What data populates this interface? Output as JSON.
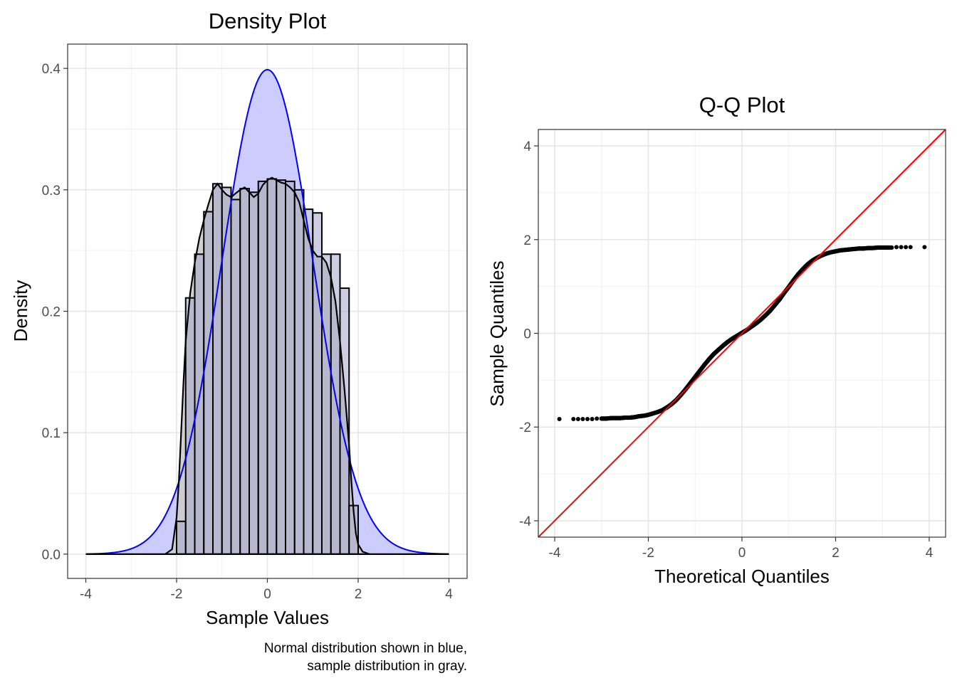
{
  "colors": {
    "normal_line": "#0000ff",
    "normal_fill": "#ccccff",
    "sample_fill": "#cccccc",
    "hist_bar_fill": "#a6a6cc",
    "outline": "#000000",
    "reference_line": "#ff0000",
    "points": "#000000"
  },
  "caption": {
    "line1": "Normal distribution shown in blue,",
    "line2": "sample distribution in gray."
  },
  "chart_data": [
    {
      "type": "area",
      "title": "Density Plot",
      "xlabel": "Sample Values",
      "ylabel": "Density",
      "xlim": [
        -4.4,
        4.4
      ],
      "ylim": [
        -0.02,
        0.42
      ],
      "x_ticks": [
        -4,
        -2,
        0,
        2,
        4
      ],
      "x_tick_labels": [
        "-4",
        "-2",
        "0",
        "2",
        "4"
      ],
      "y_ticks": [
        0.0,
        0.1,
        0.2,
        0.3,
        0.4
      ],
      "y_tick_labels": [
        "0.0",
        "0.1",
        "0.2",
        "0.3",
        "0.4"
      ],
      "grid": true,
      "series": [
        {
          "kind": "histogram",
          "bin_width": 0.2,
          "bin_starts": [
            -2.0,
            -1.8,
            -1.6,
            -1.4,
            -1.2,
            -1.0,
            -0.8,
            -0.6,
            -0.4,
            -0.2,
            0.0,
            0.2,
            0.4,
            0.6,
            0.8,
            1.0,
            1.2,
            1.4,
            1.6,
            1.8
          ],
          "values": [
            0.027,
            0.211,
            0.247,
            0.282,
            0.305,
            0.302,
            0.292,
            0.301,
            0.298,
            0.307,
            0.309,
            0.308,
            0.307,
            0.3,
            0.284,
            0.281,
            0.247,
            0.247,
            0.219,
            0.04
          ]
        },
        {
          "kind": "sample_density",
          "x": [
            -2.25,
            -2.1,
            -2.0,
            -1.95,
            -1.9,
            -1.85,
            -1.8,
            -1.7,
            -1.6,
            -1.5,
            -1.4,
            -1.3,
            -1.2,
            -1.1,
            -1.0,
            -0.9,
            -0.8,
            -0.7,
            -0.6,
            -0.5,
            -0.4,
            -0.3,
            -0.2,
            -0.1,
            0.0,
            0.1,
            0.2,
            0.3,
            0.4,
            0.5,
            0.6,
            0.7,
            0.8,
            0.9,
            1.0,
            1.1,
            1.2,
            1.3,
            1.4,
            1.5,
            1.6,
            1.7,
            1.8,
            1.85,
            1.9,
            1.95,
            2.0,
            2.1,
            2.25
          ],
          "values": [
            0.0,
            0.004,
            0.03,
            0.06,
            0.1,
            0.14,
            0.175,
            0.215,
            0.24,
            0.26,
            0.275,
            0.288,
            0.3,
            0.305,
            0.3,
            0.296,
            0.294,
            0.297,
            0.3,
            0.302,
            0.298,
            0.294,
            0.297,
            0.304,
            0.308,
            0.31,
            0.308,
            0.306,
            0.305,
            0.302,
            0.298,
            0.29,
            0.275,
            0.26,
            0.25,
            0.245,
            0.245,
            0.24,
            0.228,
            0.208,
            0.175,
            0.135,
            0.09,
            0.06,
            0.035,
            0.017,
            0.008,
            0.002,
            0.0
          ]
        },
        {
          "kind": "normal_density",
          "mean": 0,
          "sd": 1,
          "x_range": [
            -4,
            4
          ]
        }
      ]
    },
    {
      "type": "scatter",
      "title": "Q-Q Plot",
      "xlabel": "Theoretical Quantiles",
      "ylabel": "Sample Quantiles",
      "xlim": [
        -4.35,
        4.35
      ],
      "ylim": [
        -4.35,
        4.35
      ],
      "x_ticks": [
        -4,
        -2,
        0,
        2,
        4
      ],
      "x_tick_labels": [
        "-4",
        "-2",
        "0",
        "2",
        "4"
      ],
      "y_ticks": [
        -4,
        -2,
        0,
        2,
        4
      ],
      "y_tick_labels": [
        "-4",
        "-2",
        "0",
        "2",
        "4"
      ],
      "grid": true,
      "reference_line": {
        "intercept": 0,
        "slope": 1
      },
      "series": [
        {
          "kind": "qq_points",
          "x": [
            -3.9,
            -3.6,
            -3.5,
            -3.4,
            -3.3,
            -3.2,
            -3.1,
            -3.0,
            -2.9,
            -2.8,
            -2.7,
            -2.6,
            -2.5,
            -2.4,
            -2.3,
            -2.2,
            -2.1,
            -2.0,
            -1.9,
            -1.8,
            -1.7,
            -1.6,
            -1.5,
            -1.4,
            -1.3,
            -1.2,
            -1.1,
            -1.0,
            -0.9,
            -0.8,
            -0.7,
            -0.6,
            -0.5,
            -0.4,
            -0.3,
            -0.2,
            -0.1,
            0.0,
            0.1,
            0.2,
            0.3,
            0.4,
            0.5,
            0.6,
            0.7,
            0.8,
            0.9,
            1.0,
            1.1,
            1.2,
            1.3,
            1.4,
            1.5,
            1.6,
            1.7,
            1.8,
            1.9,
            2.0,
            2.1,
            2.2,
            2.3,
            2.4,
            2.5,
            2.6,
            2.7,
            2.8,
            2.9,
            3.0,
            3.1,
            3.2,
            3.3,
            3.4,
            3.5,
            3.6,
            3.9
          ],
          "y": [
            -1.83,
            -1.83,
            -1.83,
            -1.83,
            -1.83,
            -1.83,
            -1.82,
            -1.82,
            -1.82,
            -1.81,
            -1.81,
            -1.81,
            -1.8,
            -1.8,
            -1.79,
            -1.77,
            -1.76,
            -1.74,
            -1.71,
            -1.68,
            -1.64,
            -1.58,
            -1.51,
            -1.42,
            -1.31,
            -1.19,
            -1.06,
            -0.93,
            -0.8,
            -0.67,
            -0.55,
            -0.44,
            -0.35,
            -0.26,
            -0.18,
            -0.11,
            -0.05,
            0.01,
            0.07,
            0.14,
            0.21,
            0.29,
            0.38,
            0.48,
            0.6,
            0.72,
            0.86,
            0.99,
            1.13,
            1.26,
            1.37,
            1.47,
            1.55,
            1.61,
            1.66,
            1.7,
            1.73,
            1.75,
            1.77,
            1.78,
            1.79,
            1.8,
            1.81,
            1.81,
            1.82,
            1.82,
            1.83,
            1.83,
            1.83,
            1.83,
            1.84,
            1.84,
            1.84,
            1.84,
            1.84
          ]
        }
      ]
    }
  ]
}
